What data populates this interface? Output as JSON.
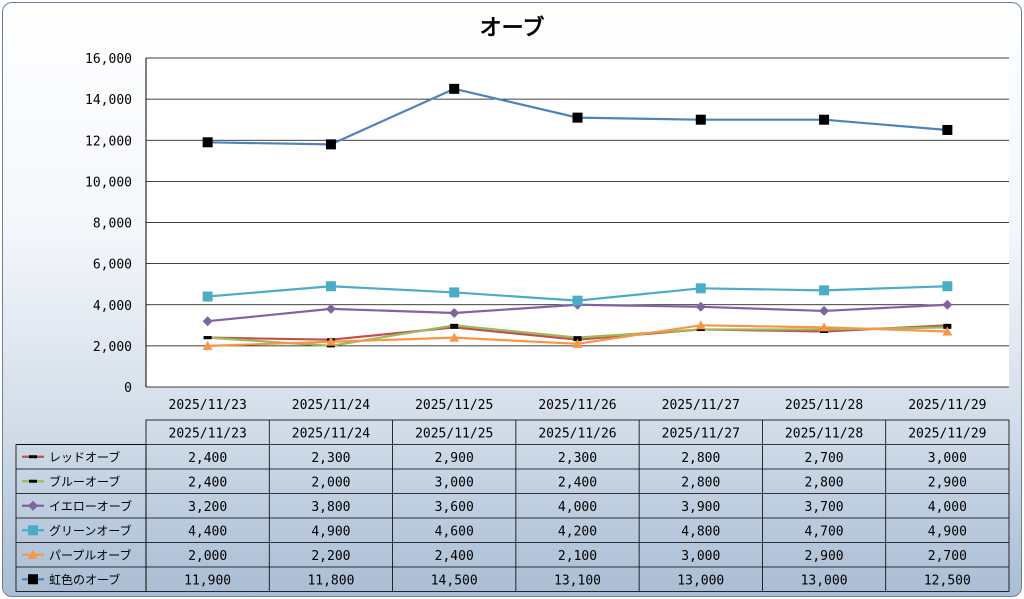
{
  "chart_data": {
    "type": "line",
    "title": "オーブ",
    "categories": [
      "2025/11/23",
      "2025/11/24",
      "2025/11/25",
      "2025/11/26",
      "2025/11/27",
      "2025/11/28",
      "2025/11/29"
    ],
    "ylim": [
      0,
      16000
    ],
    "yticks": [
      0,
      2000,
      4000,
      6000,
      8000,
      10000,
      12000,
      14000,
      16000
    ],
    "ytick_labels": [
      "0",
      "2,000",
      "4,000",
      "6,000",
      "8,000",
      "10,000",
      "12,000",
      "14,000",
      "16,000"
    ],
    "grid": true,
    "legend": "data-table",
    "series": [
      {
        "name": "レッドオーブ",
        "values": [
          2400,
          2300,
          2900,
          2300,
          2800,
          2700,
          3000
        ],
        "labels": [
          "2,400",
          "2,300",
          "2,900",
          "2,300",
          "2,800",
          "2,700",
          "3,000"
        ],
        "color": "#c0504d",
        "marker": "dash"
      },
      {
        "name": "ブルーオーブ",
        "values": [
          2400,
          2000,
          3000,
          2400,
          2800,
          2800,
          2900
        ],
        "labels": [
          "2,400",
          "2,000",
          "3,000",
          "2,400",
          "2,800",
          "2,800",
          "2,900"
        ],
        "color": "#9bbb59",
        "marker": "dash"
      },
      {
        "name": "イエローオーブ",
        "values": [
          3200,
          3800,
          3600,
          4000,
          3900,
          3700,
          4000
        ],
        "labels": [
          "3,200",
          "3,800",
          "3,600",
          "4,000",
          "3,900",
          "3,700",
          "4,000"
        ],
        "color": "#8064a2",
        "marker": "diamond"
      },
      {
        "name": "グリーンオーブ",
        "values": [
          4400,
          4900,
          4600,
          4200,
          4800,
          4700,
          4900
        ],
        "labels": [
          "4,400",
          "4,900",
          "4,600",
          "4,200",
          "4,800",
          "4,700",
          "4,900"
        ],
        "color": "#4bacc6",
        "marker": "square"
      },
      {
        "name": "パープルオーブ",
        "values": [
          2000,
          2200,
          2400,
          2100,
          3000,
          2900,
          2700
        ],
        "labels": [
          "2,000",
          "2,200",
          "2,400",
          "2,100",
          "3,000",
          "2,900",
          "2,700"
        ],
        "color": "#f79646",
        "marker": "triangle"
      },
      {
        "name": "虹色のオーブ",
        "values": [
          11900,
          11800,
          14500,
          13100,
          13000,
          13000,
          12500
        ],
        "labels": [
          "11,900",
          "11,800",
          "14,500",
          "13,100",
          "13,000",
          "13,000",
          "12,500"
        ],
        "color": "#4f81bd",
        "marker": "black-square"
      }
    ]
  }
}
